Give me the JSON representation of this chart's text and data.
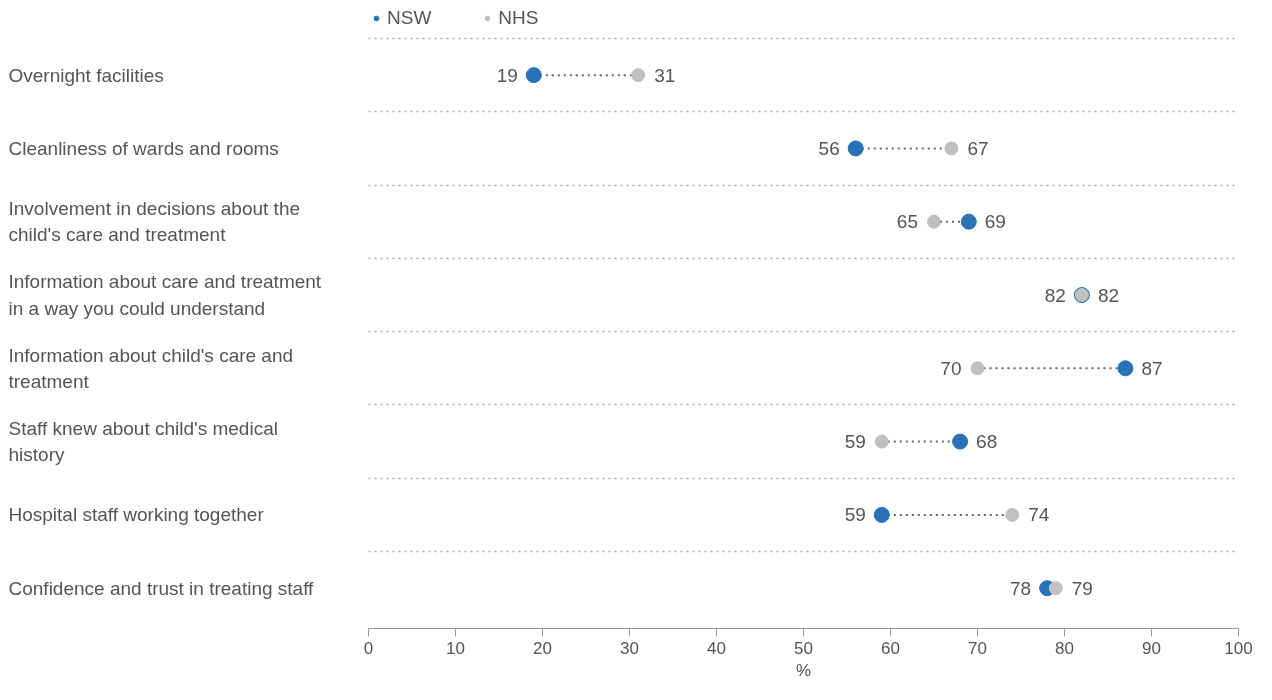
{
  "chart_data": {
    "type": "scatter",
    "orientation": "horizontal",
    "xlabel": "%",
    "categories": [
      "Overnight facilities",
      "Cleanliness of wards and rooms",
      "Involvement in decisions about the child's care and treatment",
      "Information about care and treatment in a way you could understand",
      "Information about child's care and treatment",
      "Staff knew about child's medical history",
      "Hospital staff working together",
      "Confidence and trust in treating staff"
    ],
    "series": [
      {
        "name": "NSW",
        "color": "#2a72b8",
        "values": [
          19,
          56,
          69,
          82,
          87,
          68,
          59,
          78
        ]
      },
      {
        "name": "NHS",
        "color": "#c0c0c0",
        "values": [
          31,
          67,
          65,
          82,
          70,
          59,
          74,
          79
        ]
      }
    ],
    "xlim": [
      0,
      100
    ],
    "xticks": [
      0,
      10,
      20,
      30,
      40,
      50,
      60,
      70,
      80,
      90,
      100
    ],
    "data_labels": true,
    "grid": "y",
    "legend": "top left",
    "marker": "circle",
    "line_style": "dotted"
  }
}
